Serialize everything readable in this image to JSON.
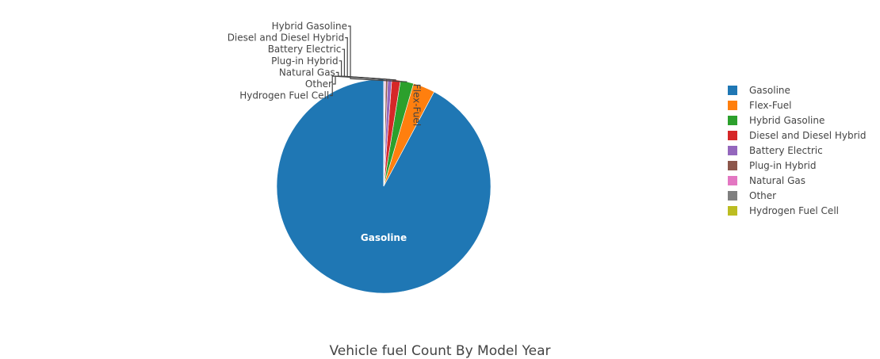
{
  "chart_data": {
    "type": "pie",
    "title": "Vehicle fuel Count By Model Year",
    "legend_position": "right",
    "slices": [
      {
        "label": "Gasoline",
        "value": 92.2,
        "color": "#1f77b4",
        "label_mode": "inside",
        "label_color": "#ffffff"
      },
      {
        "label": "Flex-Fuel",
        "value": 3.3,
        "color": "#ff7f0e",
        "label_mode": "inside-rotated",
        "label_color": "#444444"
      },
      {
        "label": "Hybrid Gasoline",
        "value": 2.0,
        "color": "#2ca02c",
        "label_mode": "outside"
      },
      {
        "label": "Diesel and Diesel Hybrid",
        "value": 1.3,
        "color": "#d62728",
        "label_mode": "outside"
      },
      {
        "label": "Battery Electric",
        "value": 0.6,
        "color": "#9467bd",
        "label_mode": "outside"
      },
      {
        "label": "Plug-in Hybrid",
        "value": 0.3,
        "color": "#8c564b",
        "label_mode": "outside"
      },
      {
        "label": "Natural Gas",
        "value": 0.15,
        "color": "#e377c2",
        "label_mode": "outside"
      },
      {
        "label": "Other",
        "value": 0.1,
        "color": "#7f7f7f",
        "label_mode": "outside"
      },
      {
        "label": "Hydrogen Fuel Cell",
        "value": 0.05,
        "color": "#bcbd22",
        "label_mode": "outside"
      }
    ]
  }
}
